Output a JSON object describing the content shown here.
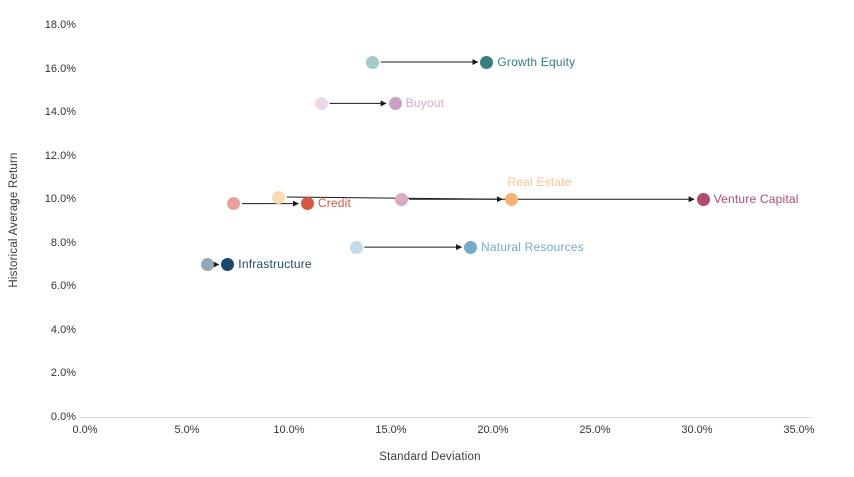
{
  "chart_data": {
    "type": "scatter",
    "title": "",
    "xlabel": "Standard Deviation",
    "ylabel": "Historical Average Return",
    "xlim": [
      0,
      35
    ],
    "ylim": [
      0,
      18
    ],
    "grid": false,
    "legend": "none (direct point labels)",
    "x_ticks": [
      {
        "value": 0,
        "label": "0.0%"
      },
      {
        "value": 5,
        "label": "5.0%"
      },
      {
        "value": 10,
        "label": "10.0%"
      },
      {
        "value": 15,
        "label": "15.0%"
      },
      {
        "value": 20,
        "label": "20.0%"
      },
      {
        "value": 25,
        "label": "25.0%"
      },
      {
        "value": 30,
        "label": "30.0%"
      },
      {
        "value": 35,
        "label": "35.0%"
      }
    ],
    "y_ticks": [
      {
        "value": 0,
        "label": "0.0%"
      },
      {
        "value": 2,
        "label": "2.0%"
      },
      {
        "value": 4,
        "label": "4.0%"
      },
      {
        "value": 6,
        "label": "6.0%"
      },
      {
        "value": 8,
        "label": "8.0%"
      },
      {
        "value": 10,
        "label": "10.0%"
      },
      {
        "value": 12,
        "label": "12.0%"
      },
      {
        "value": 14,
        "label": "14.0%"
      },
      {
        "value": 16,
        "label": "16.0%"
      },
      {
        "value": 18,
        "label": "18.0%"
      }
    ],
    "series": [
      {
        "name": "Growth Equity",
        "start": {
          "x": 14.1,
          "y": 16.3
        },
        "end": {
          "x": 19.7,
          "y": 16.3
        },
        "start_color": "#A3CAC6",
        "end_color": "#35807D",
        "label_color": "#2F7F7D",
        "label_position": "right"
      },
      {
        "name": "Buyout",
        "start": {
          "x": 11.6,
          "y": 14.4
        },
        "end": {
          "x": 15.2,
          "y": 14.4
        },
        "start_color": "#EBD7E7",
        "end_color": "#CBA0C8",
        "label_color": "#D2A9CE",
        "label_position": "right"
      },
      {
        "name": "Real Estate",
        "start": {
          "x": 9.5,
          "y": 10.1
        },
        "end": {
          "x": 20.9,
          "y": 10.0
        },
        "start_color": "#FBDCB2",
        "end_color": "#F9B173",
        "label_color": "#FBC28B",
        "label_position": "above"
      },
      {
        "name": "Venture Capital",
        "start": {
          "x": 15.5,
          "y": 10.0
        },
        "end": {
          "x": 30.3,
          "y": 10.0
        },
        "start_color": "#DCA9C5",
        "end_color": "#B04B72",
        "label_color": "#B04B72",
        "label_position": "right"
      },
      {
        "name": "Credit",
        "start": {
          "x": 7.3,
          "y": 9.8
        },
        "end": {
          "x": 10.9,
          "y": 9.8
        },
        "start_color": "#E8A29A",
        "end_color": "#D8573F",
        "label_color": "#D8573F",
        "label_position": "right"
      },
      {
        "name": "Natural Resources",
        "start": {
          "x": 13.3,
          "y": 7.8
        },
        "end": {
          "x": 18.9,
          "y": 7.8
        },
        "start_color": "#C2DCEC",
        "end_color": "#74ABCE",
        "label_color": "#74ABCE",
        "label_position": "right"
      },
      {
        "name": "Infrastructure",
        "start": {
          "x": 6.0,
          "y": 7.0
        },
        "end": {
          "x": 7.0,
          "y": 7.0
        },
        "start_color": "#92A9BD",
        "end_color": "#1A4A6E",
        "label_color": "#1A4A6E",
        "label_position": "right"
      }
    ],
    "colors": {
      "axis_line": "#D9D9D9",
      "arrow": "#1A1A1A",
      "tick_text": "#333333",
      "axis_title_text": "#3B3B3B"
    }
  }
}
